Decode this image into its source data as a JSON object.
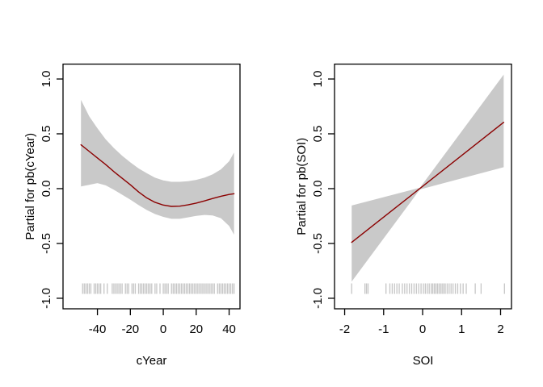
{
  "figure": {
    "description": "Two-panel partial effects plot",
    "background": "#FFFFFF"
  },
  "style": {
    "fit_line_color": "#8B0000",
    "band_color": "#C9C9C9",
    "rug_color": "#C6C6C6",
    "axis_color": "#000000",
    "text_color": "#000000"
  },
  "chart_data": [
    {
      "type": "line",
      "name": "partial-cyear",
      "title": "",
      "xlabel": "cYear",
      "ylabel": "Partial for pb(cYear)",
      "xlim": [
        -60.9,
        46.6
      ],
      "ylim": [
        -1.096,
        1.136
      ],
      "grid": false,
      "legend": null,
      "x_axis": {
        "ticks": [
          -40,
          -20,
          0,
          20,
          40
        ],
        "tick_labels": [
          "-40",
          "-20",
          "0",
          "20",
          "40"
        ]
      },
      "y_axis": {
        "ticks": [
          -1.0,
          -0.5,
          0.0,
          0.5,
          1.0
        ],
        "tick_labels": [
          "-1.0",
          "-0.5",
          "0.0",
          "0.5",
          "1.0"
        ]
      },
      "series": [
        {
          "name": "fit",
          "x": [
            -50,
            -45,
            -40,
            -35,
            -30,
            -25,
            -20,
            -15,
            -10,
            -5,
            0,
            5,
            10,
            15,
            20,
            25,
            30,
            35,
            40,
            43
          ],
          "y": [
            0.4,
            0.34,
            0.28,
            0.22,
            0.155,
            0.095,
            0.035,
            -0.03,
            -0.085,
            -0.125,
            -0.15,
            -0.162,
            -0.16,
            -0.148,
            -0.132,
            -0.112,
            -0.09,
            -0.07,
            -0.053,
            -0.047
          ]
        }
      ],
      "band": {
        "x": [
          -50,
          -45,
          -40,
          -35,
          -30,
          -25,
          -20,
          -15,
          -10,
          -5,
          0,
          5,
          10,
          15,
          20,
          25,
          30,
          35,
          40,
          43
        ],
        "upper": [
          0.81,
          0.66,
          0.55,
          0.45,
          0.37,
          0.3,
          0.24,
          0.185,
          0.14,
          0.1,
          0.075,
          0.062,
          0.062,
          0.068,
          0.08,
          0.1,
          0.13,
          0.175,
          0.25,
          0.33
        ],
        "lower": [
          0.02,
          0.035,
          0.05,
          0.03,
          -0.01,
          -0.055,
          -0.1,
          -0.15,
          -0.195,
          -0.232,
          -0.258,
          -0.275,
          -0.275,
          -0.262,
          -0.248,
          -0.24,
          -0.245,
          -0.27,
          -0.34,
          -0.42
        ]
      },
      "rug": [
        -49,
        -48,
        -47,
        -46,
        -45,
        -44,
        -42,
        -41,
        -40,
        -39,
        -38,
        -36,
        -34,
        -31,
        -30,
        -29,
        -28,
        -27,
        -26,
        -25,
        -23,
        -22,
        -21,
        -19,
        -18,
        -17,
        -15,
        -14,
        -13,
        -12,
        -11,
        -10,
        -9,
        -8,
        -7,
        -5,
        -4,
        -2,
        0,
        1,
        2,
        3,
        5,
        6,
        7,
        8,
        9,
        10,
        11,
        12,
        13,
        14,
        15,
        16,
        17,
        18,
        19,
        20,
        21,
        22,
        23,
        24,
        25,
        26,
        27,
        28,
        29,
        30,
        31,
        33,
        34,
        35,
        36,
        37,
        38,
        39,
        40,
        41,
        42,
        43
      ]
    },
    {
      "type": "line",
      "name": "partial-soi",
      "title": "",
      "xlabel": "SOI",
      "ylabel": "Partial for pb(SOI)",
      "xlim": [
        -2.26,
        2.28
      ],
      "ylim": [
        -1.096,
        1.136
      ],
      "grid": false,
      "legend": null,
      "x_axis": {
        "ticks": [
          -2,
          -1,
          0,
          1,
          2
        ],
        "tick_labels": [
          "-2",
          "-1",
          "0",
          "1",
          "2"
        ]
      },
      "y_axis": {
        "ticks": [
          -1.0,
          -0.5,
          0.0,
          0.5,
          1.0
        ],
        "tick_labels": [
          "-1.0",
          "-0.5",
          "0.0",
          "0.5",
          "1.0"
        ]
      },
      "series": [
        {
          "name": "fit",
          "x": [
            -1.82,
            2.08
          ],
          "y": [
            -0.49,
            0.605
          ]
        }
      ],
      "band": {
        "x": [
          -1.82,
          -0.07,
          2.08
        ],
        "upper": [
          -0.154,
          0.008,
          1.04
        ],
        "lower": [
          -0.848,
          -0.008,
          0.196
        ]
      },
      "rug": [
        -1.82,
        -1.48,
        -1.44,
        -1.4,
        -0.94,
        -0.84,
        -0.78,
        -0.72,
        -0.66,
        -0.6,
        -0.52,
        -0.46,
        -0.4,
        -0.34,
        -0.28,
        -0.22,
        -0.16,
        -0.1,
        -0.04,
        0.02,
        0.07,
        0.12,
        0.17,
        0.22,
        0.26,
        0.3,
        0.34,
        0.38,
        0.42,
        0.46,
        0.5,
        0.54,
        0.58,
        0.63,
        0.68,
        0.73,
        0.78,
        0.84,
        0.9,
        0.97,
        1.04,
        1.12,
        1.35,
        1.5,
        2.1
      ]
    }
  ]
}
